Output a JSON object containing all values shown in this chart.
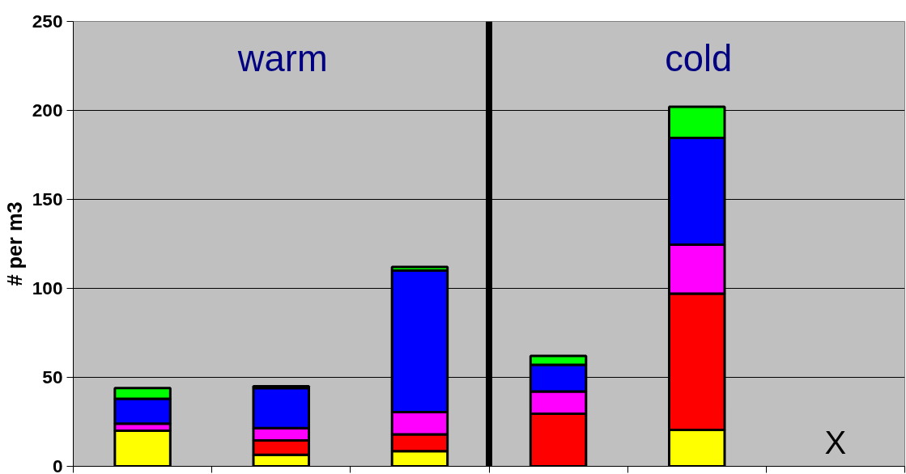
{
  "chart_data": {
    "type": "bar",
    "stacked": true,
    "ylabel": "# per m3",
    "categories": [
      null,
      null,
      null,
      null,
      null,
      null
    ],
    "ylim": [
      0,
      250
    ],
    "yticks": [
      0,
      50,
      100,
      150,
      200,
      250
    ],
    "grid": "y",
    "tick_labels": "y",
    "series": [
      {
        "color": "#ffff00",
        "values": [
          20,
          6.5,
          8.5,
          null,
          20.5,
          null
        ]
      },
      {
        "color": "#ff0000",
        "values": [
          null,
          8,
          9.5,
          29.5,
          76.5,
          null
        ]
      },
      {
        "color": "#ff00ff",
        "values": [
          4,
          7,
          12.5,
          12.5,
          27.5,
          null
        ]
      },
      {
        "color": "#0000ff",
        "values": [
          14,
          22.5,
          79.5,
          15,
          60,
          null
        ]
      },
      {
        "color": "#00ff00",
        "values": [
          6,
          1,
          2,
          5,
          17.5,
          null
        ]
      }
    ],
    "annotations": [
      "warm",
      "cold",
      "X"
    ]
  }
}
